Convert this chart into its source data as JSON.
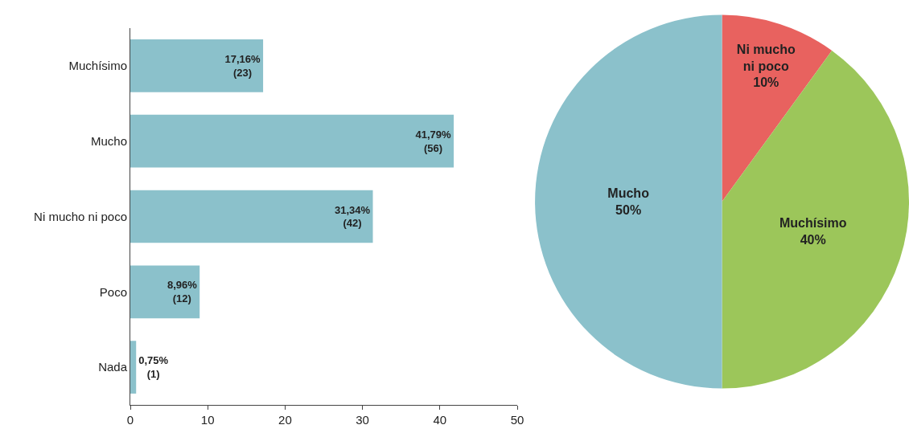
{
  "chart_data": [
    {
      "type": "bar",
      "orientation": "horizontal",
      "categories": [
        "Muchísimo",
        "Mucho",
        "Ni mucho ni poco",
        "Poco",
        "Nada"
      ],
      "values": [
        17.16,
        41.79,
        31.34,
        8.96,
        0.75
      ],
      "color": "#8bc1cb",
      "value_labels": [
        "17,16%\n(23)",
        "41,79%\n(56)",
        "31,34%\n(42)",
        "8,96%\n(12)",
        "0,75%\n(1)"
      ],
      "xlim": [
        0,
        50
      ],
      "xticks": [
        0,
        10,
        20,
        30,
        40,
        50
      ]
    },
    {
      "type": "pie",
      "categories": [
        "Ni mucho ni poco",
        "Muchísimo",
        "Mucho"
      ],
      "values": [
        10,
        40,
        50
      ],
      "colors": [
        "#e8625f",
        "#9cc65a",
        "#8bc1cb"
      ],
      "value_labels": [
        "10%",
        "40%",
        "50%"
      ]
    }
  ]
}
